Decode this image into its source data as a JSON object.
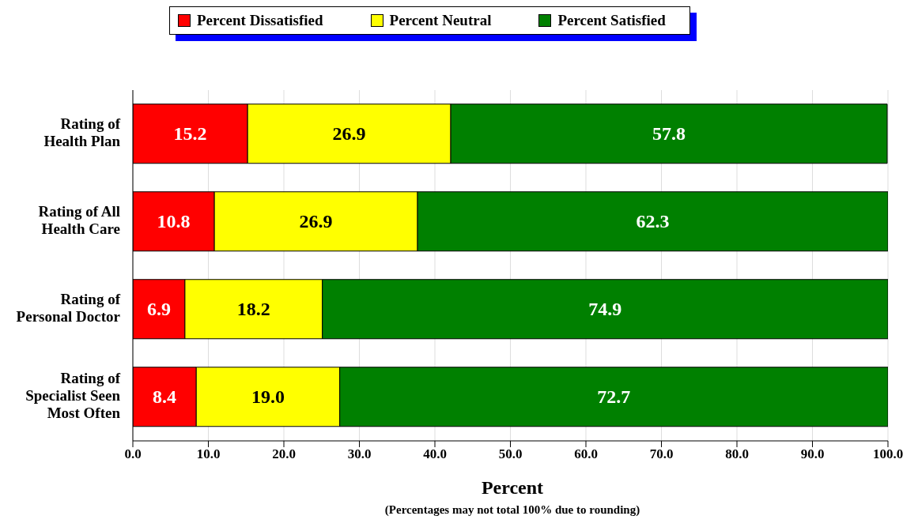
{
  "chart_data": {
    "type": "bar",
    "orientation": "horizontal",
    "stacked": true,
    "categories": [
      "Rating of Health Plan",
      "Rating of All Health Care",
      "Rating of Personal Doctor",
      "Rating of Specialist Seen Most Often"
    ],
    "series": [
      {
        "name": "Percent Dissatisfied",
        "color": "#ff0000",
        "values": [
          15.2,
          10.8,
          6.9,
          8.4
        ]
      },
      {
        "name": "Percent Neutral",
        "color": "#ffff00",
        "values": [
          26.9,
          26.9,
          18.2,
          19.0
        ]
      },
      {
        "name": "Percent Satisfied",
        "color": "#008000",
        "values": [
          57.8,
          62.3,
          74.9,
          72.7
        ]
      }
    ],
    "value_labels": [
      [
        "15.2",
        "10.8",
        "6.9",
        "8.4"
      ],
      [
        "26.9",
        "26.9",
        "18.2",
        "19.0"
      ],
      [
        "57.8",
        "62.3",
        "74.9",
        "72.7"
      ]
    ],
    "xlabel": "Percent",
    "xlim": [
      0,
      100
    ],
    "xticks": [
      {
        "value": 0,
        "label": "0.0"
      },
      {
        "value": 10,
        "label": "10.0"
      },
      {
        "value": 20,
        "label": "20.0"
      },
      {
        "value": 30,
        "label": "30.0"
      },
      {
        "value": 40,
        "label": "40.0"
      },
      {
        "value": 50,
        "label": "50.0"
      },
      {
        "value": 60,
        "label": "60.0"
      },
      {
        "value": 70,
        "label": "70.0"
      },
      {
        "value": 80,
        "label": "80.0"
      },
      {
        "value": 90,
        "label": "90.0"
      },
      {
        "value": 100,
        "label": "100.0"
      }
    ],
    "grid": "x",
    "legend": "top",
    "annotations": [
      "(Percentages may not total 100% due to rounding)"
    ]
  }
}
